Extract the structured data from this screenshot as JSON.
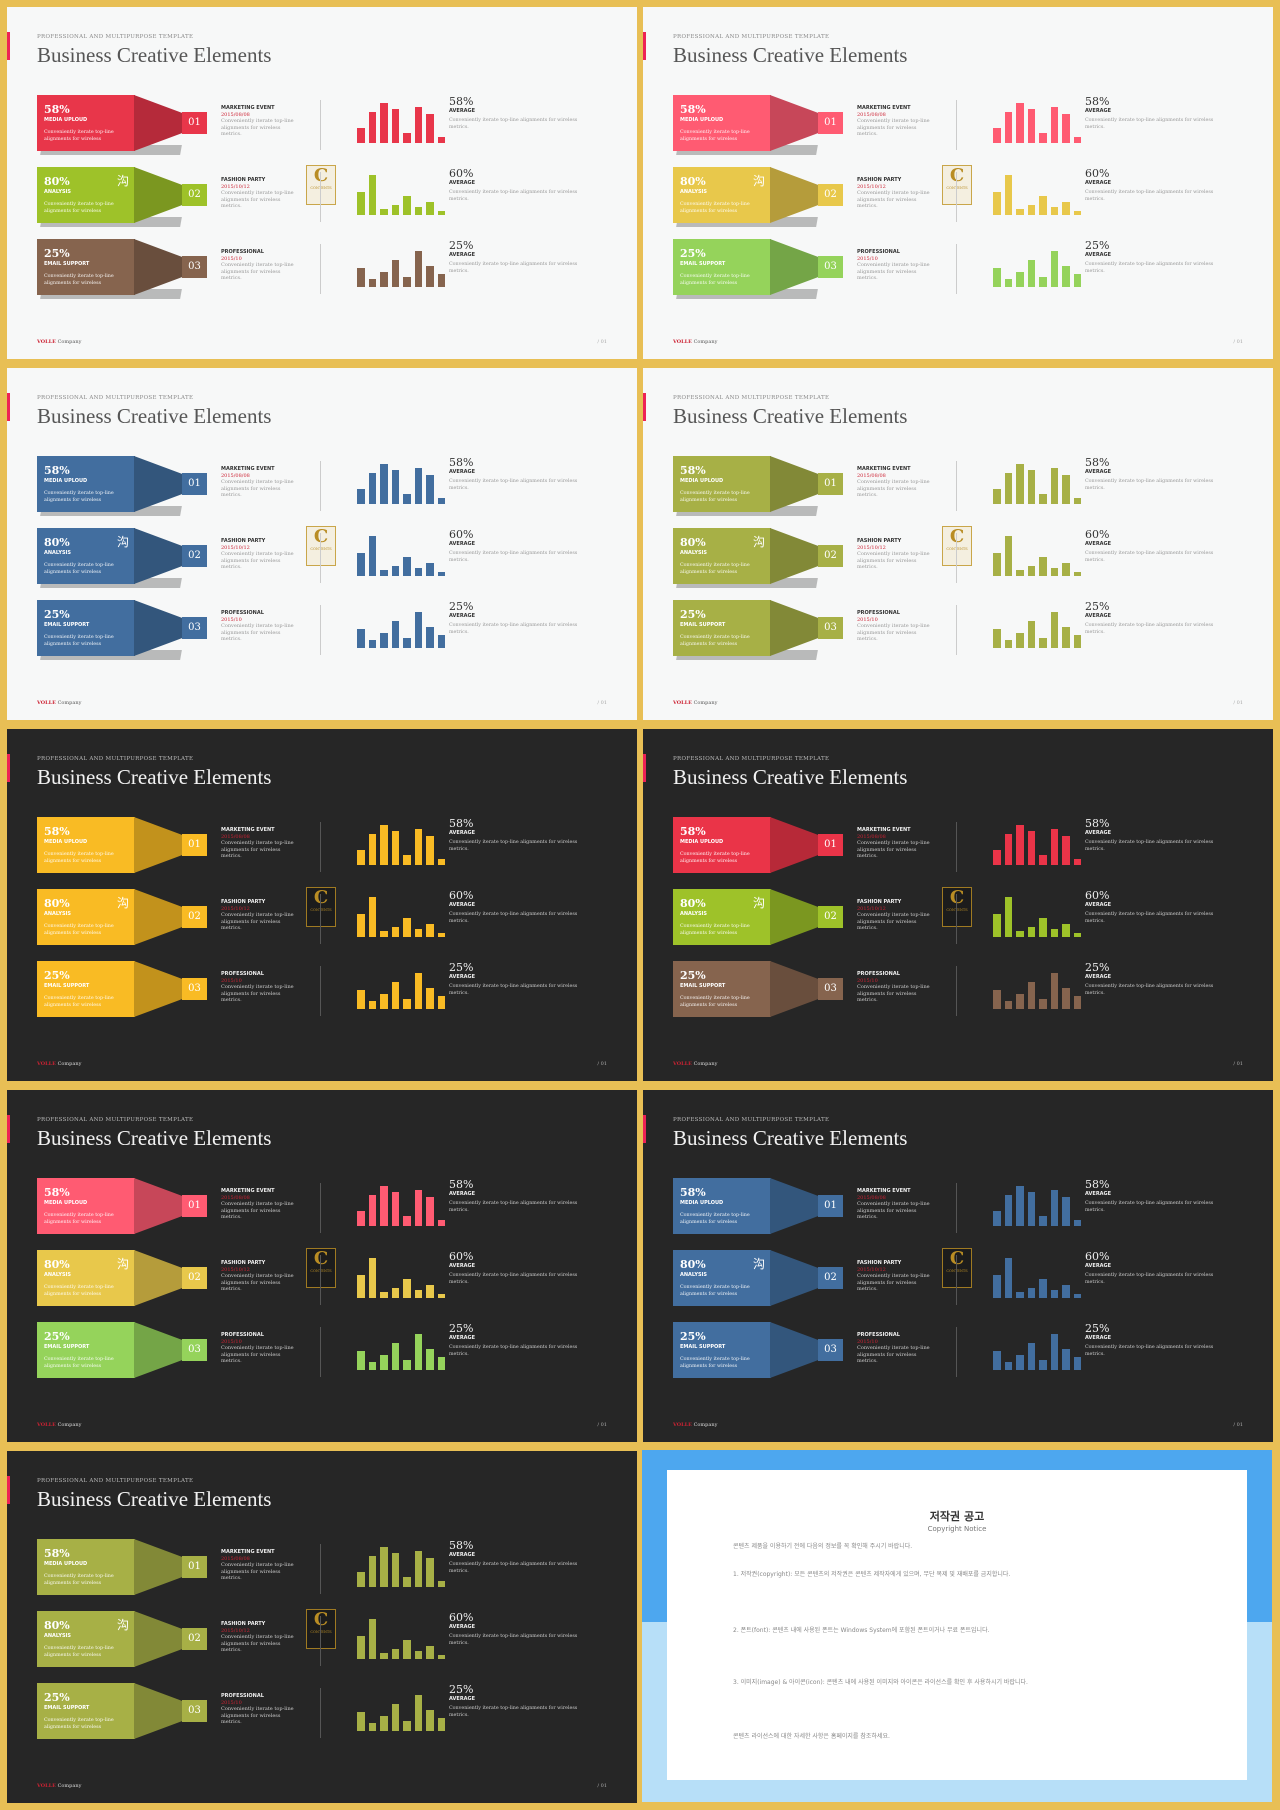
{
  "slide": {
    "kicker": "PROFESSIONAL AND MULTIPURPOSE  TEMPLATE",
    "title": "Business Creative Elements",
    "footer_brand": "VOLLE",
    "footer_company": "Company",
    "page_number": "/ 01"
  },
  "rows": [
    {
      "pct": "58%",
      "label": "MEDIA UPLOUD",
      "desc": "Conveniently iterate top-line alignments for wireless",
      "num": "01",
      "event": "MARKETING EVENT",
      "date": "2015/08/08",
      "event_desc": "Conveniently iterate top-line alignments for wireless metrics.",
      "avg_pct": "58%",
      "avg_label": "AVERAGE",
      "avg_desc": "Conveniently iterate top-line alignments for wireless metrics.",
      "bars": [
        0.35,
        0.75,
        0.95,
        0.8,
        0.25,
        0.85,
        0.7,
        0.15
      ]
    },
    {
      "pct": "80%",
      "label": "ANALYSIS",
      "desc": "Conveniently iterate top-line alignments for wireless",
      "num": "02",
      "event": "FASHION PARTY",
      "date": "2015/10/12",
      "event_desc": "Conveniently iterate top-line alignments for wireless metrics.",
      "avg_pct": "60%",
      "avg_label": "AVERAGE",
      "avg_desc": "Conveniently iterate top-line alignments for wireless metrics.",
      "bars": [
        0.55,
        0.95,
        0.15,
        0.25,
        0.45,
        0.2,
        0.3,
        0.1
      ]
    },
    {
      "pct": "25%",
      "label": "EMAIL SUPPORT",
      "desc": "Conveniently iterate top-line alignments for wireless",
      "num": "03",
      "event": "PROFESSIONAL",
      "date": "2015/10",
      "event_desc": "Conveniently iterate top-line alignments for wireless metrics.",
      "avg_pct": "25%",
      "avg_label": "AVERAGE",
      "avg_desc": "Conveniently iterate top-line alignments for wireless metrics.",
      "bars": [
        0.45,
        0.2,
        0.35,
        0.65,
        0.25,
        0.85,
        0.5,
        0.3
      ]
    }
  ],
  "badge": {
    "letter": "C",
    "text": "CONTENTS"
  },
  "themes": [
    {
      "bg": "light",
      "colors": [
        "#e8364a",
        "#9ec229",
        "#86644e"
      ]
    },
    {
      "bg": "light",
      "colors": [
        "#ff5b72",
        "#e8c84b",
        "#95d35b"
      ]
    },
    {
      "bg": "light",
      "colors": [
        "#426e9f",
        "#426e9f",
        "#426e9f"
      ]
    },
    {
      "bg": "light",
      "colors": [
        "#a7b046",
        "#a7b046",
        "#a7b046"
      ]
    },
    {
      "bg": "dark",
      "colors": [
        "#f9bb24",
        "#f9bb24",
        "#f9bb24"
      ]
    },
    {
      "bg": "dark",
      "colors": [
        "#ea3448",
        "#9ec229",
        "#86644e"
      ]
    },
    {
      "bg": "dark",
      "colors": [
        "#ff5b72",
        "#e8c84b",
        "#95d35b"
      ]
    },
    {
      "bg": "dark",
      "colors": [
        "#426e9f",
        "#426e9f",
        "#426e9f"
      ]
    },
    {
      "bg": "dark",
      "colors": [
        "#a7b046",
        "#a7b046",
        "#a7b046"
      ]
    }
  ],
  "notice": {
    "title": "저작권 공고",
    "subtitle": "Copyright Notice",
    "paragraphs": [
      "콘텐츠 제품을 이용하기 전에 다음의 정보를 꼭 확인해 주시기 바랍니다.",
      "1. 저작권(copyright): 모든 콘텐츠의 저작권은 콘텐츠 제작자에게 있으며, 무단 복제 및 재배포를 금지합니다.",
      "2. 폰트(font): 콘텐츠 내에 사용된 폰트는 Windows System에 포함된 폰트이거나 무료 폰트입니다.",
      "3. 이미지(image) & 아이콘(icon): 콘텐츠 내에 사용된 이미지와 아이콘은 라이선스를 확인 후 사용하시기 바랍니다.",
      "콘텐츠 라이선스에 대한 자세한 사항은 홈페이지를 참조하세요."
    ]
  }
}
